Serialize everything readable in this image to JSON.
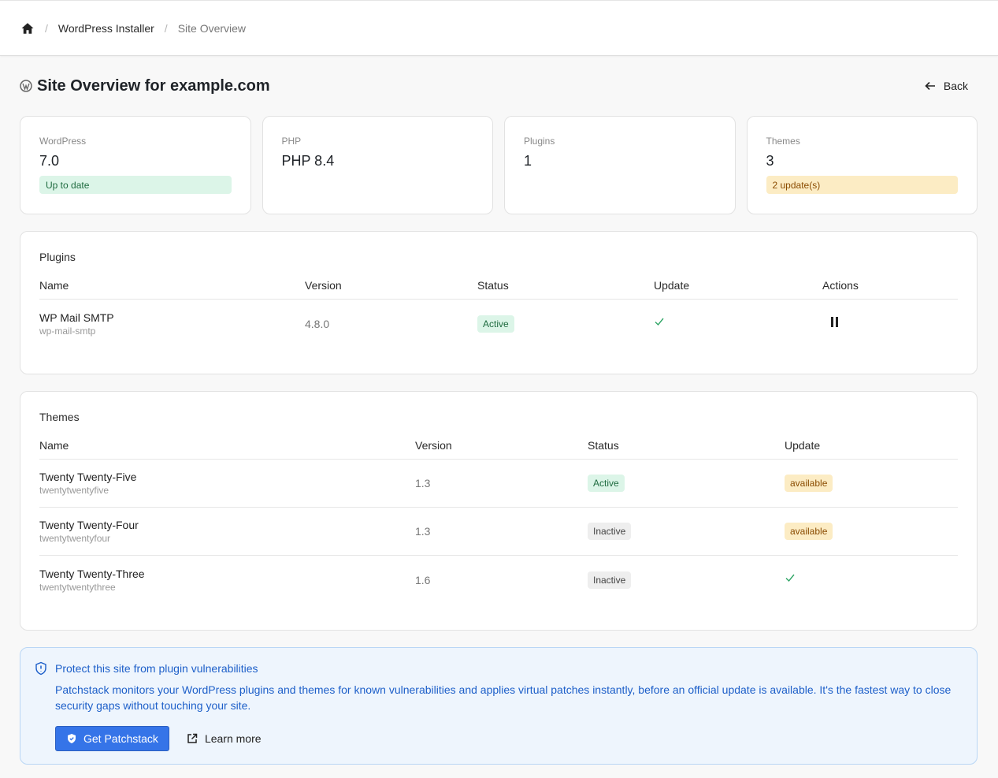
{
  "breadcrumb": [
    "WordPress Installer",
    "Site Overview"
  ],
  "page": {
    "title": "Site Overview for example.com",
    "back": "Back"
  },
  "cards": [
    {
      "label": "WordPress",
      "value": "7.0",
      "badge": "Up to date"
    },
    {
      "label": "PHP",
      "value": "PHP 8.4"
    },
    {
      "label": "Plugins",
      "value": "1"
    },
    {
      "label": "Themes",
      "value": "3",
      "badge": "2 update(s)"
    }
  ],
  "plugins": {
    "title": "Plugins",
    "columns": [
      "Name",
      "Version",
      "Status",
      "Update",
      "Actions"
    ],
    "rows": [
      {
        "name": "WP Mail SMTP",
        "slug": "wp-mail-smtp",
        "version": "4.8.0",
        "status": "Active"
      }
    ]
  },
  "themes": {
    "title": "Themes",
    "columns": [
      "Name",
      "Version",
      "Status",
      "Update"
    ],
    "rows": [
      {
        "name": "Twenty Twenty-Five",
        "slug": "twentytwentyfive",
        "version": "1.3",
        "status": "Active",
        "update": "available"
      },
      {
        "name": "Twenty Twenty-Four",
        "slug": "twentytwentyfour",
        "version": "1.3",
        "status": "Inactive",
        "update": "available"
      },
      {
        "name": "Twenty Twenty-Three",
        "slug": "twentytwentythree",
        "version": "1.6",
        "status": "Inactive"
      }
    ]
  },
  "notice": {
    "title": "Protect this site from plugin vulnerabilities",
    "body": "Patchstack monitors your WordPress plugins and themes for known vulnerabilities and applies virtual patches instantly, before an official update is available. It's the fastest way to close security gaps without touching your site.",
    "primary": "Get Patchstack",
    "secondary": "Learn more"
  }
}
